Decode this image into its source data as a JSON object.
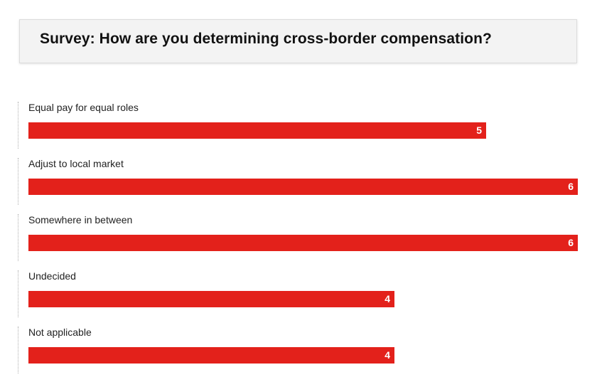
{
  "chart_data": {
    "type": "bar",
    "orientation": "horizontal",
    "title": "Survey: How are you determining cross-border compensation?",
    "categories": [
      "Equal pay for equal roles",
      "Adjust to local market",
      "Somewhere in between",
      "Undecided",
      "Not applicable"
    ],
    "values": [
      5,
      6,
      6,
      4,
      4
    ],
    "xlim": [
      0,
      6
    ],
    "bar_color": "#e3211b",
    "grid": false,
    "legend": "none"
  }
}
